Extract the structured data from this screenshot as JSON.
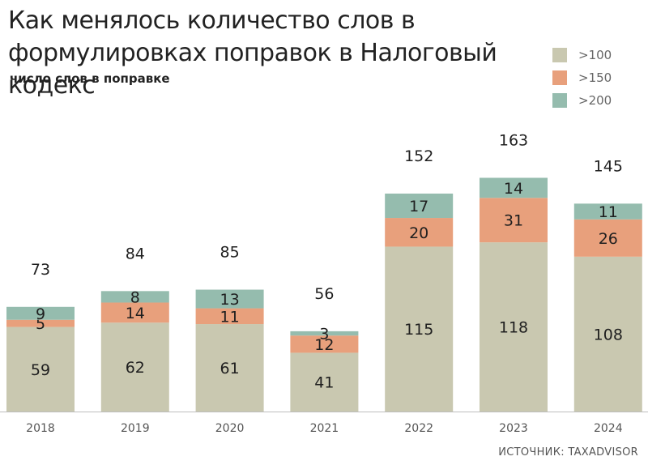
{
  "chart_data": {
    "type": "bar",
    "stacked": true,
    "title": "Как менялось количество слов в формулировках поправок в Налоговый кодекс",
    "subtitle": "число слов в поправке",
    "categories": [
      "2018",
      "2019",
      "2020",
      "2021",
      "2022",
      "2023",
      "2024"
    ],
    "series": [
      {
        "name": ">100",
        "color": "#c9c8b0",
        "values": [
          59,
          62,
          61,
          41,
          115,
          118,
          108
        ]
      },
      {
        "name": ">150",
        "color": "#e8a07c",
        "values": [
          5,
          14,
          11,
          12,
          20,
          31,
          26
        ]
      },
      {
        "name": ">200",
        "color": "#95bcae",
        "values": [
          9,
          8,
          13,
          3,
          17,
          14,
          11
        ]
      }
    ],
    "totals": [
      73,
      84,
      85,
      56,
      152,
      163,
      145
    ],
    "ylim": [
      0,
      180
    ],
    "grid": false,
    "legend_position": "top-right"
  },
  "source": "ИСТОЧНИК: TAXADVISOR"
}
